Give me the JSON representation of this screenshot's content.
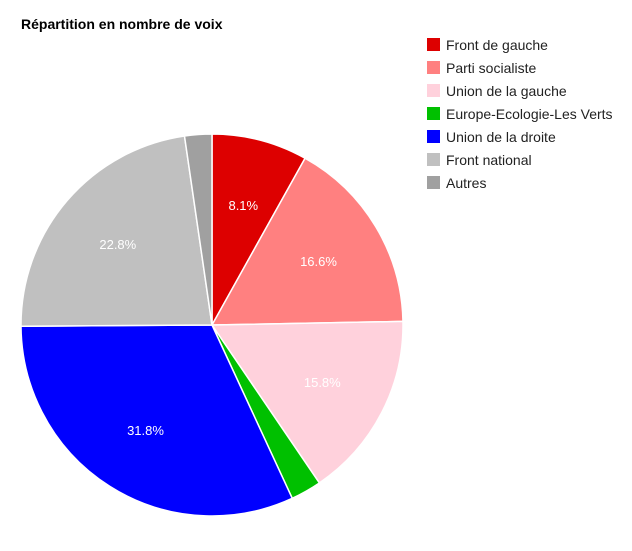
{
  "chart_data": {
    "type": "pie",
    "title": "Répartition en nombre de voix",
    "legend_position": "right",
    "slices": [
      {
        "name": "Front de gauche",
        "value": 8.1,
        "label": "8.1%",
        "color": "#dd0000"
      },
      {
        "name": "Parti socialiste",
        "value": 16.6,
        "label": "16.6%",
        "color": "#ff8080"
      },
      {
        "name": "Union de la gauche",
        "value": 15.8,
        "label": "15.8%",
        "color": "#ffd1dc"
      },
      {
        "name": "Europe-Ecologie-Les Verts",
        "value": 2.6,
        "label": "",
        "color": "#00c000"
      },
      {
        "name": "Union de la droite",
        "value": 31.8,
        "label": "31.8%",
        "color": "#0000ff"
      },
      {
        "name": "Front national",
        "value": 22.8,
        "label": "22.8%",
        "color": "#c0c0c0"
      },
      {
        "name": "Autres",
        "value": 2.3,
        "label": "",
        "color": "#a0a0a0"
      }
    ]
  }
}
